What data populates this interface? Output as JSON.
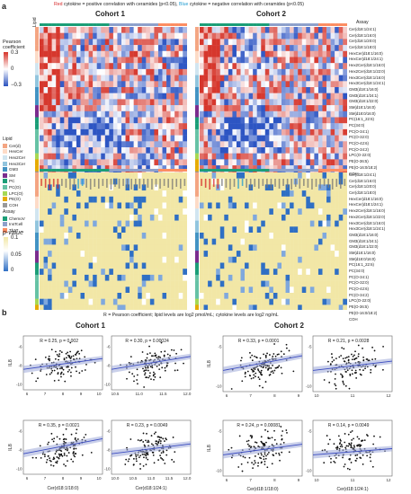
{
  "panel_a": {
    "letter": "a",
    "caption_red": "Red",
    "caption_mid": " cytokine = positive correlation with ceramides (p<0.05), ",
    "caption_blue": "Blue",
    "caption_end": " cytokine = negative correlation with ceramides (p<0.05)",
    "cohort1": "Cohort 1",
    "cohort2": "Cohort 2",
    "lipid_axis": "Lipid",
    "assay_axis": "Assay",
    "pearson_legend": {
      "title": "Pearson coefficient",
      "max": "0.3",
      "mid": "0",
      "min": "−0.3"
    },
    "pvalue_legend": {
      "title": "p-value",
      "v1": "0.1",
      "v2": "0.05",
      "v3": "0"
    },
    "lipid_legend": {
      "title": "Lipid",
      "items": [
        "Cer(d)",
        "HexCer",
        "Hex2Cer",
        "Hex3Cer",
        "GM3",
        "SM",
        "PC",
        "PC(O)",
        "LPC(O)",
        "PE(O)",
        "COH"
      ],
      "colors": [
        "#f4a582",
        "#fddbc7",
        "#d1e5f0",
        "#92c5de",
        "#4393c3",
        "#7b2d8e",
        "#1b9e77",
        "#66c2a5",
        "#a6d854",
        "#e6ab02",
        "#999999"
      ]
    },
    "assay_legend": {
      "title": "Assay",
      "items": [
        "ChemoV",
        "InsTcell",
        "Th17"
      ],
      "colors": [
        "#1b9e77",
        "#8da0cb",
        "#fc8d62"
      ]
    },
    "lipids": [
      "Cer(d18:1/24:1)",
      "Cer(d18:1/16:0)",
      "Cer(d18:1/20:0)",
      "Cer(d18:1/18:0)",
      "HexCer(d18:1/16:0)",
      "HexCer(d18:1/24:1)",
      "Hex2Cer(d18:1/16:0)",
      "Hex2Cer(d18:1/22:0)",
      "Hex3Cer(d18:1/16:0)",
      "Hex3Cer(d18:1/24:1)",
      "GM3(d18:1/16:0)",
      "GM3(d18:1/24:1)",
      "GM3(d18:1/22:0)",
      "SM(d18:1/16:0)",
      "SM(d18:0/16:0)",
      "PC(16:1_22:6)",
      "PC(34:0)",
      "PC(O-34:1)",
      "PC(O-32:0)",
      "PC(O-42:6)",
      "PC(O-34:2)",
      "LPC(O-22:0)",
      "PE(O-36:5)",
      "PE(O-16:0/18:2)",
      "COH"
    ]
  },
  "panel_b": {
    "letter": "b",
    "caption": "R = Pearson coefficient; lipid levels are log2 pmol/mL; cytokine levels are log2 ng/mL",
    "cohort1": "Cohort 1",
    "cohort2": "Cohort 2",
    "ylabel": "IL8",
    "xlabel_left": "Cer(d18:1/18:0)",
    "xlabel_right": "Cer(d18:1/24:1)",
    "plots": [
      {
        "stat": "R = 0.25, p = 0.002",
        "xticks": [
          "6",
          "7",
          "8",
          "9",
          "10"
        ],
        "yticks": [
          "-6",
          "-8",
          "-10"
        ]
      },
      {
        "stat": "R = 0.30, p = 0.00024",
        "xticks": [
          "10.5",
          "11.0",
          "11.5",
          "12.0"
        ],
        "yticks": [
          "-6",
          "-8",
          "-10"
        ]
      },
      {
        "stat": "R = 0.35, p = 0.0021",
        "xticks": [
          "6",
          "7",
          "8",
          "9",
          "10"
        ],
        "yticks": [
          "-6",
          "-8",
          "-10"
        ]
      },
      {
        "stat": "R = 0.23, p = 0.0049",
        "xticks": [
          "10.0",
          "10.5",
          "11.0",
          "11.5",
          "12.0"
        ],
        "yticks": [
          "-6",
          "-8",
          "-10"
        ]
      },
      {
        "stat": "R = 0.33, p = 0.0001",
        "xticks": [
          "6",
          "7",
          "8",
          "9"
        ],
        "yticks": [
          "-5",
          "-10"
        ]
      },
      {
        "stat": "R = 0.21, p = 0.0028",
        "xticks": [
          "10",
          "11",
          "12"
        ],
        "yticks": [
          "-5",
          "-10"
        ]
      },
      {
        "stat": "R = 0.24, p = 0.00081",
        "xticks": [
          "6",
          "7",
          "8",
          "9"
        ],
        "yticks": [
          "-5",
          "-10"
        ]
      },
      {
        "stat": "R = 0.14, p = 0.0049",
        "xticks": [
          "10",
          "11",
          "12"
        ],
        "yticks": [
          "-5",
          "-10"
        ]
      }
    ]
  }
}
